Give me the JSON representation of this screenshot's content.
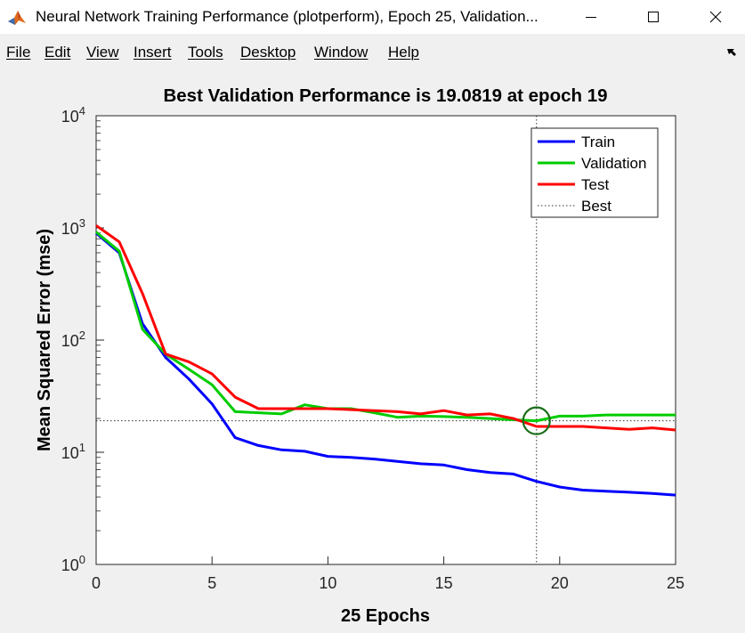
{
  "window": {
    "title": "Neural Network Training Performance (plotperform), Epoch 25, Validation...",
    "icon": "matlab-icon",
    "controls": [
      "minimize-icon",
      "maximize-icon",
      "close-icon"
    ]
  },
  "menu": {
    "items": [
      "File",
      "Edit",
      "View",
      "Insert",
      "Tools",
      "Desktop",
      "Window",
      "Help"
    ]
  },
  "colors": {
    "train": "#0000ff",
    "validation": "#00cc00",
    "test": "#ff0000",
    "best": "#1a6e1a"
  },
  "chart_data": {
    "type": "line",
    "title": "Best Validation Performance is 19.0819 at epoch 19",
    "xlabel": "25 Epochs",
    "ylabel": "Mean Squared Error  (mse)",
    "xlim": [
      0,
      25
    ],
    "ylim": [
      1,
      10000
    ],
    "yscale": "log",
    "x_ticks": [
      "0",
      "5",
      "10",
      "15",
      "20",
      "25"
    ],
    "y_ticks": [
      {
        "base": "10",
        "exp": "0"
      },
      {
        "base": "10",
        "exp": "1"
      },
      {
        "base": "10",
        "exp": "2"
      },
      {
        "base": "10",
        "exp": "3"
      },
      {
        "base": "10",
        "exp": "4"
      }
    ],
    "legend_position": "top-right",
    "x": [
      0,
      1,
      2,
      3,
      4,
      5,
      6,
      7,
      8,
      9,
      10,
      11,
      12,
      13,
      14,
      15,
      16,
      17,
      18,
      19,
      20,
      21,
      22,
      23,
      24,
      25
    ],
    "series": [
      {
        "name": "Train",
        "values": [
          900,
          600,
          140,
          70,
          45,
          27,
          13.5,
          11.5,
          10.5,
          10.2,
          9.2,
          9.0,
          8.7,
          8.3,
          7.9,
          7.7,
          7.0,
          6.6,
          6.4,
          5.5,
          4.9,
          4.6,
          4.5,
          4.4,
          4.3,
          4.15
        ]
      },
      {
        "name": "Validation",
        "values": [
          920,
          620,
          125,
          75,
          55,
          40,
          23,
          22.5,
          22,
          26.5,
          24.5,
          24.5,
          22.5,
          20.5,
          21,
          20.8,
          20.5,
          20,
          19.5,
          19.08,
          21,
          21,
          21.5,
          21.5,
          21.5,
          21.5
        ]
      },
      {
        "name": "Test",
        "values": [
          1050,
          750,
          260,
          75,
          64,
          50,
          31,
          24.5,
          24.5,
          24.5,
          24.5,
          24,
          23.5,
          23,
          22,
          23.5,
          21.5,
          22,
          20,
          17,
          17,
          17,
          16.5,
          16,
          16.5,
          15.8
        ]
      }
    ],
    "best": {
      "name": "Best",
      "epoch": 19,
      "value": 19.0819
    }
  }
}
